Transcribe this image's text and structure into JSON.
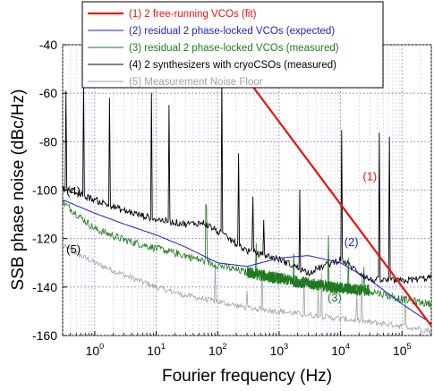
{
  "chart_data": {
    "type": "line",
    "xlabel": "Fourier frequency (Hz)",
    "ylabel": "SSB phase noise (dBc/Hz)",
    "xscale": "log",
    "xlim": [
      0.3,
      300000
    ],
    "ylim": [
      -160,
      -40
    ],
    "x_ticks": [
      {
        "base": "10",
        "exp": "0"
      },
      {
        "base": "10",
        "exp": "1"
      },
      {
        "base": "10",
        "exp": "2"
      },
      {
        "base": "10",
        "exp": "3"
      },
      {
        "base": "10",
        "exp": "4"
      },
      {
        "base": "10",
        "exp": "5"
      }
    ],
    "y_ticks": [
      "-40",
      "-60",
      "-80",
      "-100",
      "-120",
      "-140",
      "-160"
    ],
    "grid": true,
    "legend_position": "top-center",
    "series": [
      {
        "name": "(1) 2 free-running VCOs (fit)",
        "color": "#e8140c",
        "label": "(1)",
        "x": [
          20,
          300000
        ],
        "y": [
          -14,
          -156
        ]
      },
      {
        "name": "(2) residual 2 phase-locked VCOs (expected)",
        "color": "#1f1fbf",
        "label": "(2)",
        "x": [
          0.3,
          1,
          3,
          10,
          30,
          100,
          300,
          1000,
          3000,
          10000,
          30000,
          100000,
          300000
        ],
        "y": [
          -104,
          -109.5,
          -114,
          -118.5,
          -123.5,
          -130,
          -131.5,
          -128,
          -127,
          -130,
          -137,
          -147,
          -155
        ]
      },
      {
        "name": "(3) residual 2 phase-locked VCOs (measured)",
        "color": "#1f7a1f",
        "label": "(3)",
        "x": [
          0.3,
          1,
          3,
          10,
          30,
          100,
          300,
          1000,
          3000,
          10000,
          30000,
          100000,
          300000
        ],
        "y": [
          -105,
          -116,
          -120.5,
          -124,
          -127,
          -131,
          -134,
          -136.5,
          -138.5,
          -140.5,
          -141.5,
          -145,
          -147
        ]
      },
      {
        "name": "(4) 2 synthesizers with cryoCSOs (measured)",
        "color": "#000000",
        "label": "(4)",
        "x": [
          0.3,
          1,
          3,
          10,
          30,
          60,
          100,
          300,
          1000,
          3000,
          10000,
          30000,
          100000,
          300000
        ],
        "y": [
          -99,
          -104,
          -108.5,
          -112,
          -114,
          -113.5,
          -117,
          -125,
          -128.5,
          -134,
          -128.5,
          -137,
          -137.5,
          -136
        ]
      },
      {
        "name": "(5) Measurement Noise Floor",
        "color": "#a0a0a0",
        "label": "(5)",
        "x": [
          0.3,
          1,
          3,
          10,
          30,
          100,
          300,
          1000,
          3000,
          10000,
          30000,
          100000,
          300000
        ],
        "y": [
          -123,
          -130,
          -135,
          -140,
          -143.5,
          -146,
          -148.5,
          -150,
          -151.5,
          -153,
          -154.5,
          -156,
          -158
        ]
      }
    ]
  }
}
